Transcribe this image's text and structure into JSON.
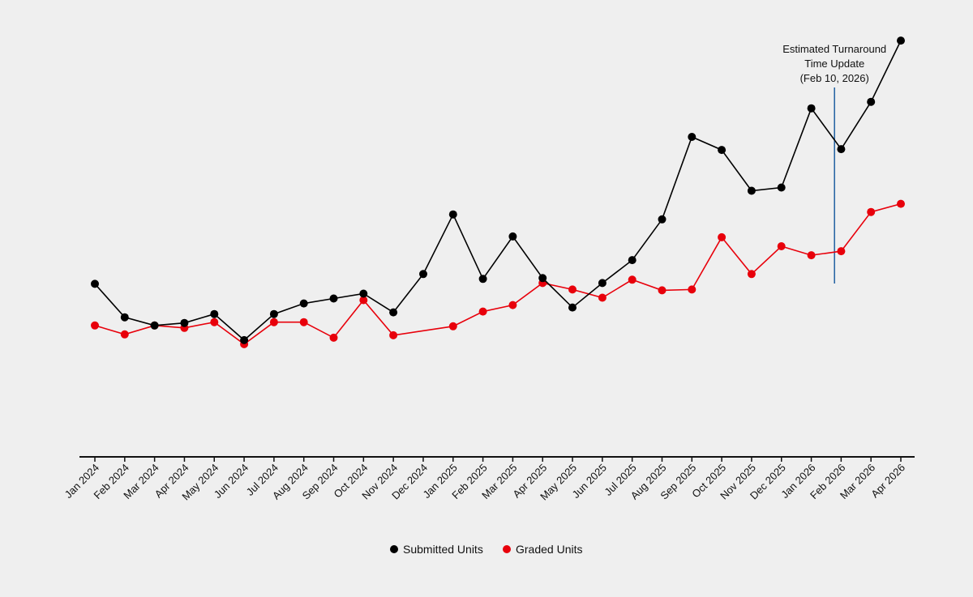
{
  "chart_data": {
    "type": "line",
    "categories": [
      "Jan 2024",
      "Feb 2024",
      "Mar 2024",
      "Apr 2024",
      "May 2024",
      "Jun 2024",
      "Jul 2024",
      "Aug 2024",
      "Sep 2024",
      "Oct 2024",
      "Nov 2024",
      "Dec 2024",
      "Jan 2025",
      "Feb 2025",
      "Mar 2025",
      "Apr 2025",
      "May 2025",
      "Jun 2025",
      "Jul 2025",
      "Aug 2025",
      "Sep 2025",
      "Oct 2025",
      "Nov 2025",
      "Dec 2025",
      "Jan 2026",
      "Feb 2026",
      "Mar 2026",
      "Apr 2026"
    ],
    "series": [
      {
        "name": "Submitted Units",
        "color": "#000000",
        "values": [
          212,
          171,
          161,
          164,
          175,
          143,
          175,
          188,
          194,
          200,
          177,
          224,
          297,
          218,
          270,
          219,
          183,
          213,
          241,
          291,
          392,
          376,
          326,
          330,
          427,
          377,
          435,
          510
        ]
      },
      {
        "name": "Graded Units",
        "color": "#e8000b",
        "values": [
          161,
          150,
          161,
          158,
          165,
          138,
          165,
          165,
          146,
          192,
          149,
          null,
          160,
          178,
          186,
          213,
          205,
          195,
          217,
          204,
          205,
          269,
          224,
          258,
          247,
          252,
          300,
          310
        ]
      }
    ],
    "annotation": {
      "lines": [
        "Estimated Turnaround",
        "Time Update",
        "(Feb 10, 2026)"
      ],
      "x_date": "2026-02-10",
      "line_color": "#1f5fa0"
    },
    "ylim": [
      0,
      520
    ],
    "grid": false,
    "legend_position": "bottom-center",
    "xlabel": "",
    "ylabel": ""
  }
}
